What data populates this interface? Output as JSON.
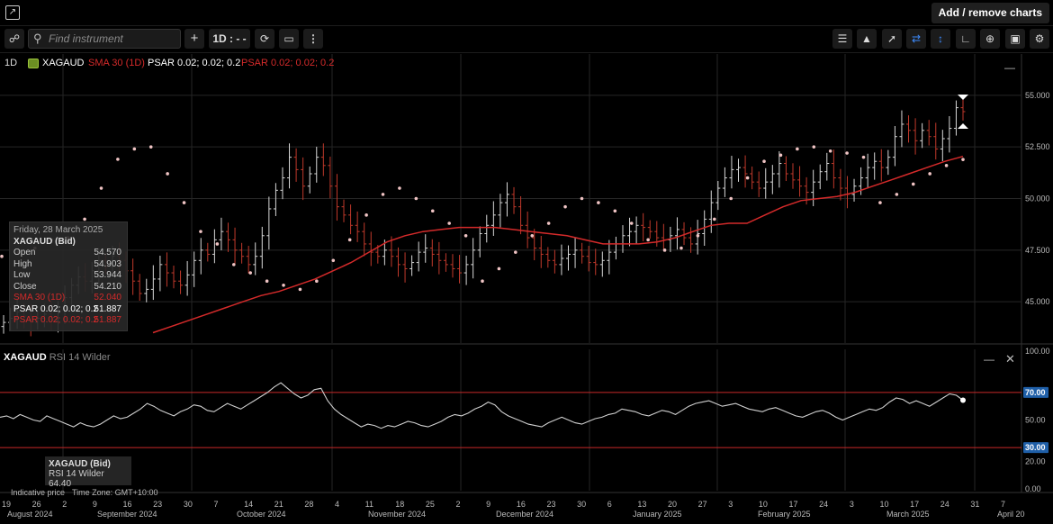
{
  "topbar": {
    "add_remove": "Add / remove charts"
  },
  "toolbar": {
    "search_placeholder": "Find instrument",
    "add": "+",
    "interval": "1D : - -",
    "right_icons": [
      "bar-chart-icon",
      "chart-style-icon",
      "draw-line-icon",
      "measure-icon",
      "crosshair-icon",
      "compare-icon",
      "zoom-icon",
      "camera-icon",
      "settings-icon"
    ]
  },
  "legend": {
    "interval": "1D",
    "symbol": "XAGAUD",
    "sma": "SMA 30 (1D)",
    "psar1": "PSAR 0.02; 0.02; 0.2",
    "psar2": "PSAR 0.02; 0.02; 0.2"
  },
  "tooltip": {
    "date": "Friday, 28 March 2025",
    "instrument": "XAGAUD (Bid)",
    "rows": [
      {
        "label": "Open",
        "value": "54.570"
      },
      {
        "label": "High",
        "value": "54.903"
      },
      {
        "label": "Low",
        "value": "53.944"
      },
      {
        "label": "Close",
        "value": "54.210"
      },
      {
        "label": "SMA 30 (1D)",
        "value": "52.040"
      },
      {
        "label": "PSAR 0.02; 0.02; 0.2",
        "value": "51.887"
      },
      {
        "label": "PSAR 0.02; 0.02; 0.2",
        "value": "51.887"
      }
    ]
  },
  "indicator": {
    "symbol": "XAGAUD",
    "name": "RSI 14 Wilder",
    "tooltip_title": "XAGAUD (Bid)",
    "tooltip_value": "RSI 14 Wilder 64.40"
  },
  "footer": {
    "note": "Indicative price",
    "timezone": "Time Zone: GMT+10:00"
  },
  "colors": {
    "sma": "#d42a2a",
    "psar": "#f0c4c4",
    "up_candle": "#d8d8d8",
    "down_candle": "#c0392b",
    "rsi_line": "#cfcfcf",
    "band": "#c62828",
    "badge": "#1f5fa8"
  },
  "chart_data": [
    {
      "type": "candlestick",
      "title": "XAGAUD",
      "ylim": [
        43.0,
        57.0
      ],
      "y_ticks": [
        "45.000",
        "47.500",
        "50.000",
        "52.500",
        "55.000"
      ],
      "x_ticks_days": [
        "19",
        "26",
        "2",
        "9",
        "16",
        "23",
        "30",
        "7",
        "14",
        "21",
        "28",
        "4",
        "11",
        "18",
        "25",
        "2",
        "9",
        "16",
        "23",
        "30",
        "6",
        "13",
        "20",
        "27",
        "3",
        "10",
        "17",
        "24",
        "3",
        "10",
        "17",
        "24",
        "31",
        "7"
      ],
      "x_ticks_months": [
        "August 2024",
        "September 2024",
        "October 2024",
        "November 2024",
        "December 2024",
        "January 2025",
        "February 2025",
        "March 2025",
        "April 20"
      ],
      "closes": [
        44.0,
        44.2,
        44.5,
        44.3,
        44.0,
        44.2,
        44.4,
        44.1,
        44.6,
        45.2,
        45.8,
        46.2,
        46.0,
        46.5,
        47.0,
        46.7,
        47.2,
        47.0,
        46.5,
        46.0,
        45.4,
        45.6,
        46.1,
        46.8,
        46.4,
        46.0,
        45.8,
        46.3,
        47.0,
        47.5,
        47.3,
        48.0,
        48.4,
        48.0,
        47.5,
        47.2,
        46.8,
        47.2,
        48.2,
        49.5,
        50.4,
        51.0,
        52.0,
        51.4,
        50.6,
        51.2,
        52.0,
        51.6,
        50.6,
        49.6,
        49.2,
        48.7,
        48.4,
        47.8,
        47.4,
        47.2,
        47.5,
        47.2,
        46.8,
        46.6,
        46.9,
        47.4,
        47.6,
        47.3,
        47.0,
        46.8,
        46.6,
        46.4,
        46.8,
        47.5,
        48.3,
        48.7,
        49.2,
        49.8,
        50.2,
        49.6,
        48.7,
        48.1,
        47.6,
        47.3,
        47.0,
        46.8,
        47.1,
        47.3,
        47.5,
        47.2,
        46.9,
        46.8,
        47.0,
        47.4,
        47.8,
        48.2,
        48.4,
        48.7,
        48.6,
        48.4,
        48.1,
        48.0,
        48.2,
        48.5,
        48.1,
        47.8,
        48.3,
        49.0,
        49.8,
        50.5,
        51.0,
        51.4,
        51.5,
        51.2,
        50.8,
        50.5,
        50.8,
        51.2,
        51.7,
        51.2,
        50.9,
        50.6,
        50.3,
        50.8,
        51.3,
        51.7,
        51.0,
        50.5,
        50.2,
        50.6,
        51.0,
        51.5,
        51.8,
        51.5,
        52.0,
        53.0,
        53.6,
        53.3,
        52.8,
        53.3,
        53.0,
        52.4,
        52.9,
        53.4,
        54.4,
        54.21
      ],
      "sma30": [
        43.5,
        43.8,
        44.1,
        44.4,
        44.7,
        45.0,
        45.3,
        45.5,
        45.8,
        46.1,
        46.5,
        46.9,
        47.4,
        47.9,
        48.2,
        48.4,
        48.5,
        48.6,
        48.6,
        48.6,
        48.5,
        48.4,
        48.3,
        48.2,
        48.0,
        47.8,
        47.8,
        47.8,
        47.9,
        48.1,
        48.4,
        48.7,
        48.8,
        48.8,
        49.2,
        49.6,
        49.9,
        50.0,
        50.1,
        50.3,
        50.6,
        50.9,
        51.2,
        51.5,
        51.8,
        52.04
      ],
      "psar": [
        47.2,
        47.4,
        47.6,
        48.0,
        48.1,
        49.0,
        50.5,
        51.9,
        52.4,
        52.5,
        51.2,
        49.8,
        48.4,
        47.8,
        46.8,
        46.4,
        46.0,
        45.8,
        45.6,
        46.0,
        47.0,
        48.0,
        49.2,
        50.2,
        50.5,
        50.0,
        49.4,
        48.8,
        48.2,
        46.0,
        46.6,
        47.4,
        48.2,
        48.8,
        49.6,
        50.0,
        49.8,
        49.4,
        48.8,
        48.0,
        47.5,
        47.6,
        48.2,
        49.0,
        50.0,
        51.0,
        51.8,
        52.1,
        52.4,
        52.5,
        52.3,
        52.2,
        52.0,
        49.8,
        50.2,
        50.7,
        51.2,
        51.6,
        51.89
      ]
    },
    {
      "type": "line",
      "title": "RSI 14 Wilder",
      "ylim": [
        0,
        100
      ],
      "y_ticks": [
        "100.00",
        "70.00",
        "50.00",
        "30.00",
        "20.00",
        "0.00"
      ],
      "bands": [
        70,
        30
      ],
      "values": [
        52,
        53,
        51,
        54,
        52,
        50,
        49,
        53,
        51,
        49,
        47,
        45,
        48,
        46,
        45,
        47,
        50,
        53,
        51,
        52,
        55,
        58,
        62,
        60,
        57,
        55,
        53,
        56,
        58,
        61,
        60,
        57,
        56,
        59,
        62,
        60,
        58,
        61,
        64,
        67,
        70,
        74,
        77,
        73,
        69,
        66,
        68,
        72,
        73,
        64,
        58,
        54,
        51,
        48,
        45,
        47,
        46,
        44,
        46,
        45,
        47,
        49,
        48,
        46,
        45,
        47,
        49,
        52,
        54,
        53,
        55,
        58,
        60,
        63,
        61,
        56,
        53,
        51,
        49,
        47,
        46,
        45,
        48,
        50,
        52,
        50,
        48,
        47,
        49,
        51,
        52,
        54,
        55,
        58,
        57,
        56,
        54,
        53,
        55,
        57,
        56,
        54,
        57,
        60,
        62,
        63,
        64,
        62,
        60,
        61,
        62,
        60,
        58,
        57,
        56,
        58,
        59,
        57,
        55,
        53,
        52,
        54,
        56,
        57,
        55,
        52,
        50,
        52,
        54,
        56,
        58,
        57,
        59,
        63,
        66,
        65,
        62,
        64,
        62,
        60,
        63,
        66,
        69,
        68,
        64.4
      ]
    }
  ]
}
